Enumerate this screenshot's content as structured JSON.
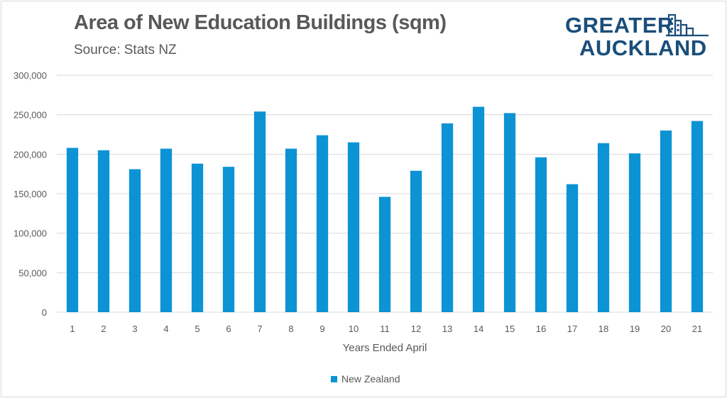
{
  "header": {
    "title": "Area of New Education Buildings (sqm)",
    "subtitle": "Source: Stats NZ"
  },
  "logo": {
    "line1": "GREATER",
    "line2": "AUCKLAND",
    "icon": "city-skyline-icon",
    "color": "#1a4e7a"
  },
  "colors": {
    "bar": "#0c93d4",
    "grid": "#d9d9d9",
    "axis_text": "#595959"
  },
  "chart_data": {
    "type": "bar",
    "title": "Area of New Education Buildings (sqm)",
    "subtitle": "Source: Stats NZ",
    "xlabel": "Years Ended April",
    "ylabel": "",
    "ylim": [
      0,
      300000
    ],
    "yticks": [
      0,
      50000,
      100000,
      150000,
      200000,
      250000,
      300000
    ],
    "ytick_labels": [
      "0",
      "50,000",
      "100,000",
      "150,000",
      "200,000",
      "250,000",
      "300,000"
    ],
    "grid": true,
    "legend_position": "bottom",
    "categories": [
      "1",
      "2",
      "3",
      "4",
      "5",
      "6",
      "7",
      "8",
      "9",
      "10",
      "11",
      "12",
      "13",
      "14",
      "15",
      "16",
      "17",
      "18",
      "19",
      "20",
      "21"
    ],
    "series": [
      {
        "name": "New Zealand",
        "values": [
          208000,
          205000,
          181000,
          207000,
          188000,
          184000,
          254000,
          207000,
          224000,
          215000,
          146000,
          179000,
          239000,
          260000,
          252000,
          196000,
          162000,
          214000,
          201000,
          230000,
          242000
        ]
      }
    ]
  }
}
